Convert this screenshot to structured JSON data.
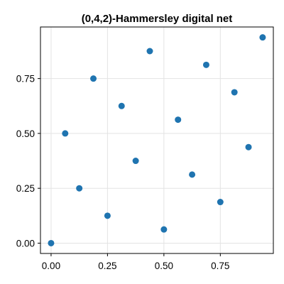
{
  "chart_data": {
    "type": "scatter",
    "title": "(0,4,2)-Hammersley digital net",
    "xlabel": "",
    "ylabel": "",
    "xlim": [
      -0.047,
      0.985
    ],
    "ylim": [
      -0.047,
      0.985
    ],
    "x_ticks": [
      0.0,
      0.25,
      0.5,
      0.75
    ],
    "y_ticks": [
      0.0,
      0.25,
      0.5,
      0.75
    ],
    "x_tick_labels": [
      "0.00",
      "0.25",
      "0.50",
      "0.75"
    ],
    "y_tick_labels": [
      "0.00",
      "0.25",
      "0.50",
      "0.75"
    ],
    "grid": true,
    "marker_color": "#1f74b0",
    "points": [
      {
        "x": 0.0,
        "y": 0.0
      },
      {
        "x": 0.0625,
        "y": 0.5
      },
      {
        "x": 0.125,
        "y": 0.25
      },
      {
        "x": 0.1875,
        "y": 0.75
      },
      {
        "x": 0.25,
        "y": 0.125
      },
      {
        "x": 0.3125,
        "y": 0.625
      },
      {
        "x": 0.375,
        "y": 0.375
      },
      {
        "x": 0.4375,
        "y": 0.875
      },
      {
        "x": 0.5,
        "y": 0.0625
      },
      {
        "x": 0.5625,
        "y": 0.5625
      },
      {
        "x": 0.625,
        "y": 0.3125
      },
      {
        "x": 0.6875,
        "y": 0.8125
      },
      {
        "x": 0.75,
        "y": 0.1875
      },
      {
        "x": 0.8125,
        "y": 0.6875
      },
      {
        "x": 0.875,
        "y": 0.4375
      },
      {
        "x": 0.9375,
        "y": 0.9375
      }
    ]
  }
}
